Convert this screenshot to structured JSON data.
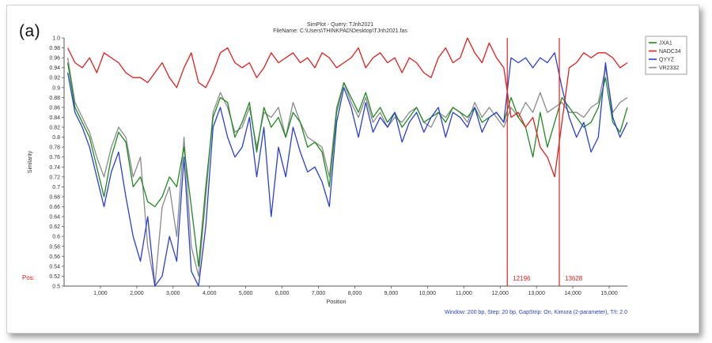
{
  "panel_label": "(a)",
  "chart_data": {
    "type": "line",
    "title": "SimPlot - Query: TJnh2021",
    "subtitle": "FileName: C:\\Users\\THINKPAD\\Desktop\\TJnh2021.fas",
    "xlabel": "Position",
    "ylabel": "Similarity",
    "xlim": [
      0,
      15500
    ],
    "ylim": [
      0.5,
      1.0
    ],
    "x_ticks": [
      "1,000",
      "2,000",
      "3,000",
      "4,000",
      "5,000",
      "6,000",
      "7,000",
      "8,000",
      "9,000",
      "10,000",
      "11,000",
      "12,000",
      "13,000",
      "14,000",
      "15,000"
    ],
    "y_ticks": [
      "0.5",
      "0.52",
      "0.54",
      "0.56",
      "0.58",
      "0.6",
      "0.62",
      "0.64",
      "0.66",
      "0.68",
      "0.7",
      "0.72",
      "0.74",
      "0.76",
      "0.78",
      "0.8",
      "0.82",
      "0.84",
      "0.86",
      "0.88",
      "0.9",
      "0.92",
      "0.94",
      "0.96",
      "0.98",
      "1.0"
    ],
    "grid": false,
    "legend_position": "top-right",
    "pos_label": "Pos:",
    "markers": [
      {
        "position": 12196,
        "label": "12196",
        "color": "#e0201e"
      },
      {
        "position": 13628,
        "label": "13628",
        "color": "#e0201e"
      }
    ],
    "footer": "Window: 200 bp, Step: 20 bp, GapStrip: On, Kimura (2-parameter), T/t: 2.0",
    "series": [
      {
        "name": "JXA1",
        "color": "#1f8a1f",
        "x": [
          100,
          300,
          500,
          700,
          900,
          1100,
          1300,
          1500,
          1700,
          1900,
          2100,
          2300,
          2500,
          2700,
          2900,
          3100,
          3300,
          3500,
          3700,
          3900,
          4100,
          4300,
          4500,
          4700,
          4900,
          5100,
          5300,
          5500,
          5700,
          5900,
          6100,
          6300,
          6500,
          6700,
          6900,
          7100,
          7300,
          7500,
          7700,
          7900,
          8100,
          8300,
          8500,
          8700,
          8900,
          9100,
          9300,
          9500,
          9700,
          9900,
          10100,
          10300,
          10500,
          10700,
          10900,
          11100,
          11300,
          11500,
          11700,
          11900,
          12100,
          12300,
          12500,
          12700,
          12900,
          13100,
          13300,
          13500,
          13700,
          13900,
          14100,
          14300,
          14500,
          14700,
          14900,
          15100,
          15300,
          15500
        ],
        "y": [
          0.95,
          0.86,
          0.83,
          0.8,
          0.74,
          0.68,
          0.76,
          0.81,
          0.79,
          0.7,
          0.72,
          0.67,
          0.66,
          0.68,
          0.72,
          0.7,
          0.78,
          0.66,
          0.54,
          0.7,
          0.84,
          0.88,
          0.87,
          0.8,
          0.83,
          0.87,
          0.77,
          0.86,
          0.82,
          0.84,
          0.8,
          0.85,
          0.83,
          0.78,
          0.79,
          0.77,
          0.7,
          0.85,
          0.91,
          0.88,
          0.85,
          0.89,
          0.84,
          0.86,
          0.83,
          0.85,
          0.82,
          0.84,
          0.86,
          0.83,
          0.84,
          0.85,
          0.83,
          0.86,
          0.85,
          0.84,
          0.86,
          0.83,
          0.84,
          0.85,
          0.83,
          0.88,
          0.84,
          0.82,
          0.76,
          0.85,
          0.78,
          0.83,
          0.88,
          0.86,
          0.84,
          0.82,
          0.83,
          0.86,
          0.92,
          0.83,
          0.81,
          0.86
        ]
      },
      {
        "name": "NADC34",
        "color": "#e0201e",
        "x": [
          100,
          300,
          500,
          700,
          900,
          1100,
          1300,
          1500,
          1700,
          1900,
          2100,
          2300,
          2500,
          2700,
          2900,
          3100,
          3300,
          3500,
          3700,
          3900,
          4100,
          4300,
          4500,
          4700,
          4900,
          5100,
          5300,
          5500,
          5700,
          5900,
          6100,
          6300,
          6500,
          6700,
          6900,
          7100,
          7300,
          7500,
          7700,
          7900,
          8100,
          8300,
          8500,
          8700,
          8900,
          9100,
          9300,
          9500,
          9700,
          9900,
          10100,
          10300,
          10500,
          10700,
          10900,
          11100,
          11300,
          11500,
          11700,
          11900,
          12100,
          12300,
          12500,
          12700,
          12900,
          13100,
          13300,
          13500,
          13700,
          13900,
          14100,
          14300,
          14500,
          14700,
          14900,
          15100,
          15300,
          15500
        ],
        "y": [
          0.98,
          0.95,
          0.94,
          0.96,
          0.93,
          0.97,
          0.96,
          0.95,
          0.93,
          0.92,
          0.92,
          0.91,
          0.93,
          0.95,
          0.92,
          0.9,
          0.94,
          0.97,
          0.91,
          0.9,
          0.93,
          0.97,
          0.98,
          0.95,
          0.94,
          0.95,
          0.92,
          0.94,
          0.97,
          0.95,
          0.96,
          0.97,
          0.95,
          0.96,
          0.94,
          0.97,
          0.96,
          0.94,
          0.95,
          0.96,
          0.98,
          0.94,
          0.96,
          0.97,
          0.95,
          0.96,
          0.93,
          0.96,
          0.95,
          0.93,
          0.92,
          0.96,
          0.98,
          0.95,
          0.96,
          1.0,
          0.97,
          0.95,
          0.99,
          0.96,
          0.94,
          0.84,
          0.85,
          0.82,
          0.84,
          0.78,
          0.76,
          0.72,
          0.83,
          0.94,
          0.95,
          0.97,
          0.96,
          0.97,
          0.97,
          0.96,
          0.94,
          0.95
        ]
      },
      {
        "name": "QYYZ",
        "color": "#2a3fd8",
        "x": [
          100,
          300,
          500,
          700,
          900,
          1100,
          1300,
          1500,
          1700,
          1900,
          2100,
          2300,
          2500,
          2700,
          2900,
          3100,
          3300,
          3500,
          3700,
          3900,
          4100,
          4300,
          4500,
          4700,
          4900,
          5100,
          5300,
          5500,
          5700,
          5900,
          6100,
          6300,
          6500,
          6700,
          6900,
          7100,
          7300,
          7500,
          7700,
          7900,
          8100,
          8300,
          8500,
          8700,
          8900,
          9100,
          9300,
          9500,
          9700,
          9900,
          10100,
          10300,
          10500,
          10700,
          10900,
          11100,
          11300,
          11500,
          11700,
          11900,
          12100,
          12300,
          12500,
          12700,
          12900,
          13100,
          13300,
          13500,
          13700,
          13900,
          14100,
          14300,
          14500,
          14700,
          14900,
          15100,
          15300,
          15500
        ],
        "y": [
          0.93,
          0.85,
          0.82,
          0.78,
          0.72,
          0.66,
          0.73,
          0.77,
          0.68,
          0.6,
          0.55,
          0.64,
          0.5,
          0.52,
          0.6,
          0.55,
          0.76,
          0.53,
          0.5,
          0.62,
          0.82,
          0.86,
          0.8,
          0.76,
          0.78,
          0.84,
          0.72,
          0.82,
          0.64,
          0.78,
          0.72,
          0.82,
          0.77,
          0.73,
          0.74,
          0.71,
          0.66,
          0.83,
          0.9,
          0.86,
          0.8,
          0.87,
          0.81,
          0.84,
          0.82,
          0.85,
          0.79,
          0.83,
          0.85,
          0.81,
          0.84,
          0.86,
          0.8,
          0.85,
          0.84,
          0.82,
          0.86,
          0.81,
          0.84,
          0.85,
          0.83,
          0.96,
          0.95,
          0.96,
          0.94,
          0.96,
          0.95,
          0.97,
          0.9,
          0.84,
          0.8,
          0.83,
          0.77,
          0.8,
          0.95,
          0.84,
          0.8,
          0.83
        ]
      },
      {
        "name": "VR2332",
        "color": "#8a8a8a",
        "x": [
          100,
          300,
          500,
          700,
          900,
          1100,
          1300,
          1500,
          1700,
          1900,
          2100,
          2300,
          2500,
          2700,
          2900,
          3100,
          3300,
          3500,
          3700,
          3900,
          4100,
          4300,
          4500,
          4700,
          4900,
          5100,
          5300,
          5500,
          5700,
          5900,
          6100,
          6300,
          6500,
          6700,
          6900,
          7100,
          7300,
          7500,
          7700,
          7900,
          8100,
          8300,
          8500,
          8700,
          8900,
          9100,
          9300,
          9500,
          9700,
          9900,
          10100,
          10300,
          10500,
          10700,
          10900,
          11100,
          11300,
          11500,
          11700,
          11900,
          12100,
          12300,
          12500,
          12700,
          12900,
          13100,
          13300,
          13500,
          13700,
          13900,
          14100,
          14300,
          14500,
          14700,
          14900,
          15100,
          15300,
          15500
        ],
        "y": [
          0.96,
          0.87,
          0.84,
          0.81,
          0.76,
          0.72,
          0.78,
          0.82,
          0.8,
          0.72,
          0.76,
          0.58,
          0.5,
          0.66,
          0.7,
          0.6,
          0.8,
          0.58,
          0.52,
          0.68,
          0.85,
          0.89,
          0.86,
          0.81,
          0.82,
          0.86,
          0.78,
          0.85,
          0.84,
          0.86,
          0.8,
          0.87,
          0.83,
          0.8,
          0.79,
          0.78,
          0.72,
          0.86,
          0.91,
          0.87,
          0.84,
          0.88,
          0.83,
          0.85,
          0.82,
          0.84,
          0.83,
          0.85,
          0.86,
          0.83,
          0.82,
          0.85,
          0.84,
          0.86,
          0.85,
          0.83,
          0.87,
          0.84,
          0.86,
          0.84,
          0.82,
          0.86,
          0.84,
          0.87,
          0.85,
          0.89,
          0.85,
          0.86,
          0.87,
          0.85,
          0.85,
          0.84,
          0.86,
          0.87,
          0.94,
          0.85,
          0.87,
          0.88
        ]
      }
    ]
  }
}
